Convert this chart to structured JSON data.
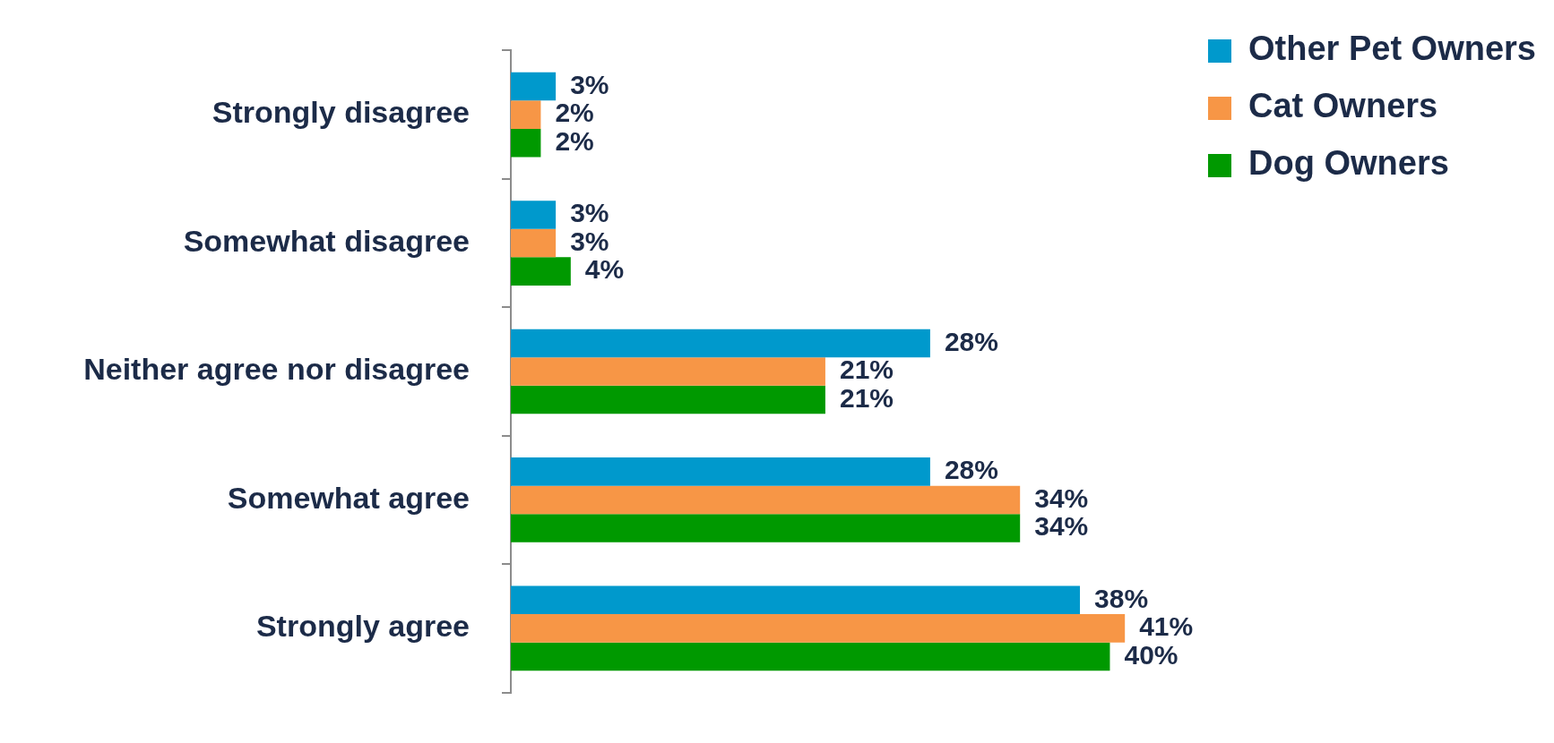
{
  "chart_data": {
    "type": "bar",
    "orientation": "horizontal",
    "categories": [
      "Strongly disagree",
      "Somewhat disagree",
      "Neither agree nor disagree",
      "Somewhat agree",
      "Strongly agree"
    ],
    "series": [
      {
        "name": "Other Pet Owners",
        "color": "#0099cc",
        "values": [
          3,
          3,
          28,
          28,
          38
        ],
        "value_labels": [
          "3%",
          "3%",
          "28%",
          "28%",
          "38%"
        ]
      },
      {
        "name": "Cat Owners",
        "color": "#f79646",
        "values": [
          2,
          3,
          21,
          34,
          41
        ],
        "value_labels": [
          "2%",
          "3%",
          "21%",
          "34%",
          "41%"
        ]
      },
      {
        "name": "Dog Owners",
        "color": "#009900",
        "values": [
          2,
          4,
          21,
          34,
          40
        ],
        "value_labels": [
          "2%",
          "4%",
          "21%",
          "34%",
          "40%"
        ]
      }
    ],
    "legend": "top right",
    "grid": false,
    "tick_labels": "y"
  }
}
